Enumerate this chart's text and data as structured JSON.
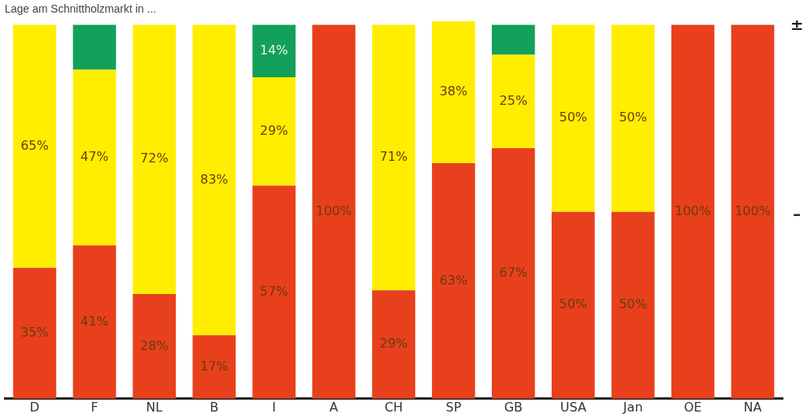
{
  "chart_data": {
    "type": "bar",
    "title": "Lage am Schnittholzmarkt in ...",
    "stacked": true,
    "categories": [
      "D",
      "F",
      "NL",
      "B",
      "I",
      "A",
      "CH",
      "SP",
      "GB",
      "USA",
      "Jan",
      "OE",
      "NA"
    ],
    "series": [
      {
        "color": "#e8401c",
        "values": [
          35,
          41,
          28,
          17,
          57,
          100,
          29,
          63,
          67,
          50,
          50,
          100,
          100
        ],
        "value_labels": [
          "35%",
          "41%",
          "28%",
          "17%",
          "57%",
          "100%",
          "29%",
          "63%",
          "67%",
          "50%",
          "50%",
          "100%",
          "100%"
        ]
      },
      {
        "color": "#ffee00",
        "values": [
          65,
          47,
          72,
          83,
          29,
          0,
          71,
          38,
          25,
          50,
          50,
          0,
          0
        ],
        "value_labels": [
          "65%",
          "47%",
          "72%",
          "83%",
          "29%",
          null,
          "71%",
          "38%",
          "25%",
          "50%",
          "50%",
          null,
          null
        ]
      },
      {
        "color": "#12a05a",
        "values": [
          0,
          12,
          0,
          0,
          14,
          0,
          0,
          0,
          8,
          0,
          0,
          0,
          0
        ],
        "value_labels": [
          null,
          null,
          null,
          null,
          "14%",
          null,
          null,
          null,
          null,
          null,
          null,
          null,
          null
        ]
      }
    ],
    "ylim": [
      0,
      101
    ],
    "annotations": [
      "±",
      "–"
    ],
    "grid": false,
    "legend": false
  }
}
